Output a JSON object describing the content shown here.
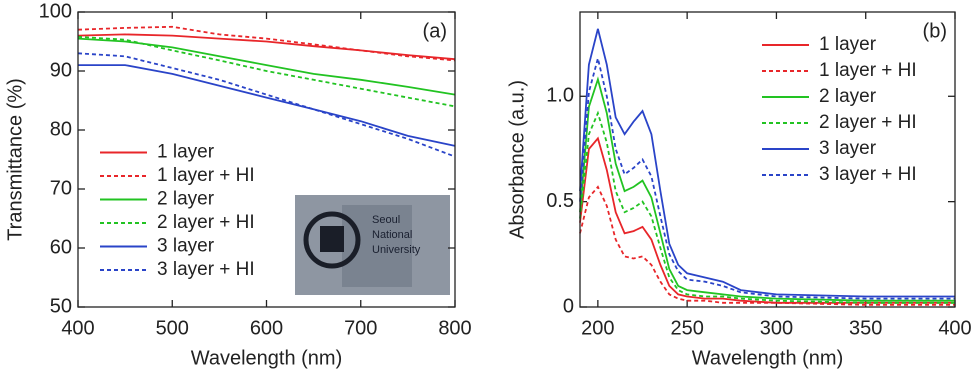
{
  "chart_data": [
    {
      "type": "line",
      "panel_label": "(a)",
      "xlabel": "Wavelength (nm)",
      "ylabel": "Transmittance (%)",
      "xlim": [
        400,
        800
      ],
      "ylim": [
        50,
        100
      ],
      "xticks": [
        400,
        500,
        600,
        700,
        800
      ],
      "yticks": [
        50,
        60,
        70,
        80,
        90,
        100
      ],
      "legend": "lower left",
      "inset_lines": [
        "Seoul",
        "National",
        "University"
      ],
      "x": [
        400,
        450,
        500,
        550,
        600,
        650,
        700,
        750,
        800
      ],
      "series": [
        {
          "name": "1 layer",
          "color": "#e8262a",
          "dashed": false,
          "values": [
            96,
            96.2,
            96,
            95.5,
            95,
            94.2,
            93.5,
            92.7,
            92
          ]
        },
        {
          "name": "1 layer + HI",
          "color": "#e8262a",
          "dashed": true,
          "values": [
            97,
            97.3,
            97.5,
            96.2,
            95.5,
            94.5,
            93.5,
            92.5,
            91.8
          ]
        },
        {
          "name": "2 layer",
          "color": "#22c322",
          "dashed": false,
          "values": [
            95.5,
            95,
            94,
            92.5,
            91,
            89.5,
            88.5,
            87.3,
            86
          ]
        },
        {
          "name": "2 layer + HI",
          "color": "#22c322",
          "dashed": true,
          "values": [
            95.8,
            95.3,
            93.5,
            91.8,
            90,
            88.5,
            87,
            85.5,
            84
          ]
        },
        {
          "name": "3 layer",
          "color": "#2a44c8",
          "dashed": false,
          "values": [
            91,
            91,
            89.5,
            87.5,
            85.5,
            83.5,
            81.5,
            79,
            77.3
          ]
        },
        {
          "name": "3 layer + HI",
          "color": "#2a44c8",
          "dashed": true,
          "values": [
            93,
            92.5,
            90.5,
            88.5,
            86,
            83.5,
            81,
            78.5,
            75.5
          ]
        }
      ]
    },
    {
      "type": "line",
      "panel_label": "(b)",
      "xlabel": "Wavelength (nm)",
      "ylabel": "Absorbance (a.u.)",
      "xlim": [
        190,
        400
      ],
      "ylim": [
        0,
        1.4
      ],
      "xticks": [
        200,
        250,
        300,
        350,
        400
      ],
      "yticks": [
        0,
        0.5,
        {
          "value": 1,
          "label": "1.0"
        }
      ],
      "legend": "upper right",
      "x": [
        190,
        195,
        200,
        205,
        210,
        215,
        220,
        225,
        230,
        235,
        240,
        245,
        250,
        260,
        270,
        280,
        300,
        350,
        400
      ],
      "series": [
        {
          "name": "1 layer",
          "color": "#e8262a",
          "dashed": false,
          "values": [
            0.4,
            0.75,
            0.8,
            0.65,
            0.45,
            0.35,
            0.36,
            0.38,
            0.32,
            0.2,
            0.1,
            0.06,
            0.05,
            0.04,
            0.04,
            0.03,
            0.02,
            0.02,
            0.02
          ]
        },
        {
          "name": "1 layer + HI",
          "color": "#e8262a",
          "dashed": true,
          "values": [
            0.35,
            0.52,
            0.57,
            0.48,
            0.32,
            0.24,
            0.23,
            0.24,
            0.2,
            0.12,
            0.06,
            0.04,
            0.03,
            0.03,
            0.02,
            0.02,
            0.02,
            0.01,
            0.01
          ]
        },
        {
          "name": "2 layer",
          "color": "#22c322",
          "dashed": false,
          "values": [
            0.45,
            0.95,
            1.08,
            0.92,
            0.68,
            0.55,
            0.57,
            0.6,
            0.52,
            0.35,
            0.18,
            0.1,
            0.08,
            0.07,
            0.06,
            0.05,
            0.04,
            0.03,
            0.03
          ]
        },
        {
          "name": "2 layer + HI",
          "color": "#22c322",
          "dashed": true,
          "values": [
            0.42,
            0.82,
            0.92,
            0.78,
            0.55,
            0.45,
            0.47,
            0.5,
            0.43,
            0.28,
            0.14,
            0.08,
            0.06,
            0.05,
            0.05,
            0.04,
            0.03,
            0.02,
            0.02
          ]
        },
        {
          "name": "3 layer",
          "color": "#2a44c8",
          "dashed": false,
          "values": [
            0.55,
            1.15,
            1.32,
            1.15,
            0.9,
            0.82,
            0.88,
            0.93,
            0.82,
            0.55,
            0.3,
            0.2,
            0.16,
            0.14,
            0.12,
            0.08,
            0.06,
            0.05,
            0.05
          ]
        },
        {
          "name": "3 layer + HI",
          "color": "#2a44c8",
          "dashed": true,
          "values": [
            0.5,
            1.02,
            1.18,
            1.0,
            0.75,
            0.63,
            0.66,
            0.7,
            0.62,
            0.43,
            0.25,
            0.17,
            0.13,
            0.12,
            0.1,
            0.07,
            0.05,
            0.04,
            0.04
          ]
        }
      ]
    }
  ]
}
